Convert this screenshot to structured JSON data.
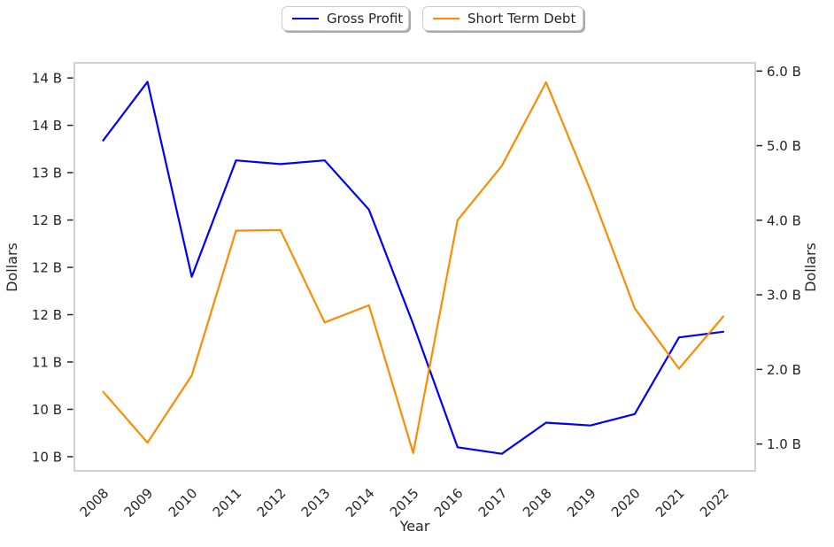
{
  "colors": {
    "background": "#ffffff",
    "spine": "#cccccc",
    "text": "#262626",
    "tick": "#262626"
  },
  "legend": {
    "items": [
      {
        "label": "Gross Profit",
        "color": "#0000ff"
      },
      {
        "label": "Short Term Debt",
        "color": "#ff8c00"
      }
    ],
    "position": "top-center"
  },
  "chart_data": {
    "type": "line",
    "title": "",
    "xlabel": "Year",
    "x": [
      2008,
      2009,
      2010,
      2011,
      2012,
      2013,
      2014,
      2015,
      2016,
      2017,
      2018,
      2019,
      2020,
      2021,
      2022
    ],
    "x_tick_labels": [
      "2008",
      "2009",
      "2010",
      "2011",
      "2012",
      "2013",
      "2014",
      "2015",
      "2016",
      "2017",
      "2018",
      "2019",
      "2020",
      "2021",
      "2022"
    ],
    "x_tick_rotation": 45,
    "xlim": [
      2007.35,
      2022.72
    ],
    "grid": false,
    "legend_position": "top-center",
    "series": [
      {
        "name": "Gross Profit",
        "yaxis": "left",
        "color": "#0000ff",
        "unit": "B",
        "values": [
          13.34,
          13.96,
          11.9,
          13.13,
          13.09,
          13.13,
          12.61,
          11.4,
          10.1,
          10.03,
          10.36,
          10.33,
          10.45,
          11.26,
          11.32
        ]
      },
      {
        "name": "Short Term Debt",
        "yaxis": "right",
        "color": "#ff8c00",
        "unit": "B",
        "values": [
          1.7,
          1.02,
          1.92,
          3.86,
          3.87,
          2.63,
          2.86,
          0.88,
          4.0,
          4.73,
          5.85,
          4.4,
          2.82,
          2.01,
          2.71
        ]
      }
    ],
    "left_axis": {
      "label": "Dollars",
      "ylim": [
        9.85,
        14.16
      ],
      "ticks": [
        {
          "value": 14.0,
          "label": "14 B"
        },
        {
          "value": 13.5,
          "label": "14 B"
        },
        {
          "value": 13.0,
          "label": "13 B"
        },
        {
          "value": 12.5,
          "label": "12 B"
        },
        {
          "value": 12.0,
          "label": "12 B"
        },
        {
          "value": 11.5,
          "label": "12 B"
        },
        {
          "value": 11.0,
          "label": "11 B"
        },
        {
          "value": 10.5,
          "label": "10 B"
        },
        {
          "value": 10.0,
          "label": "10 B"
        }
      ]
    },
    "right_axis": {
      "label": "Dollars",
      "ylim": [
        0.64,
        6.11
      ],
      "ticks": [
        {
          "value": 6.0,
          "label": "6.0 B"
        },
        {
          "value": 5.0,
          "label": "5.0 B"
        },
        {
          "value": 4.0,
          "label": "4.0 B"
        },
        {
          "value": 3.0,
          "label": "3.0 B"
        },
        {
          "value": 2.0,
          "label": "2.0 B"
        },
        {
          "value": 1.0,
          "label": "1.0 B"
        }
      ]
    }
  }
}
